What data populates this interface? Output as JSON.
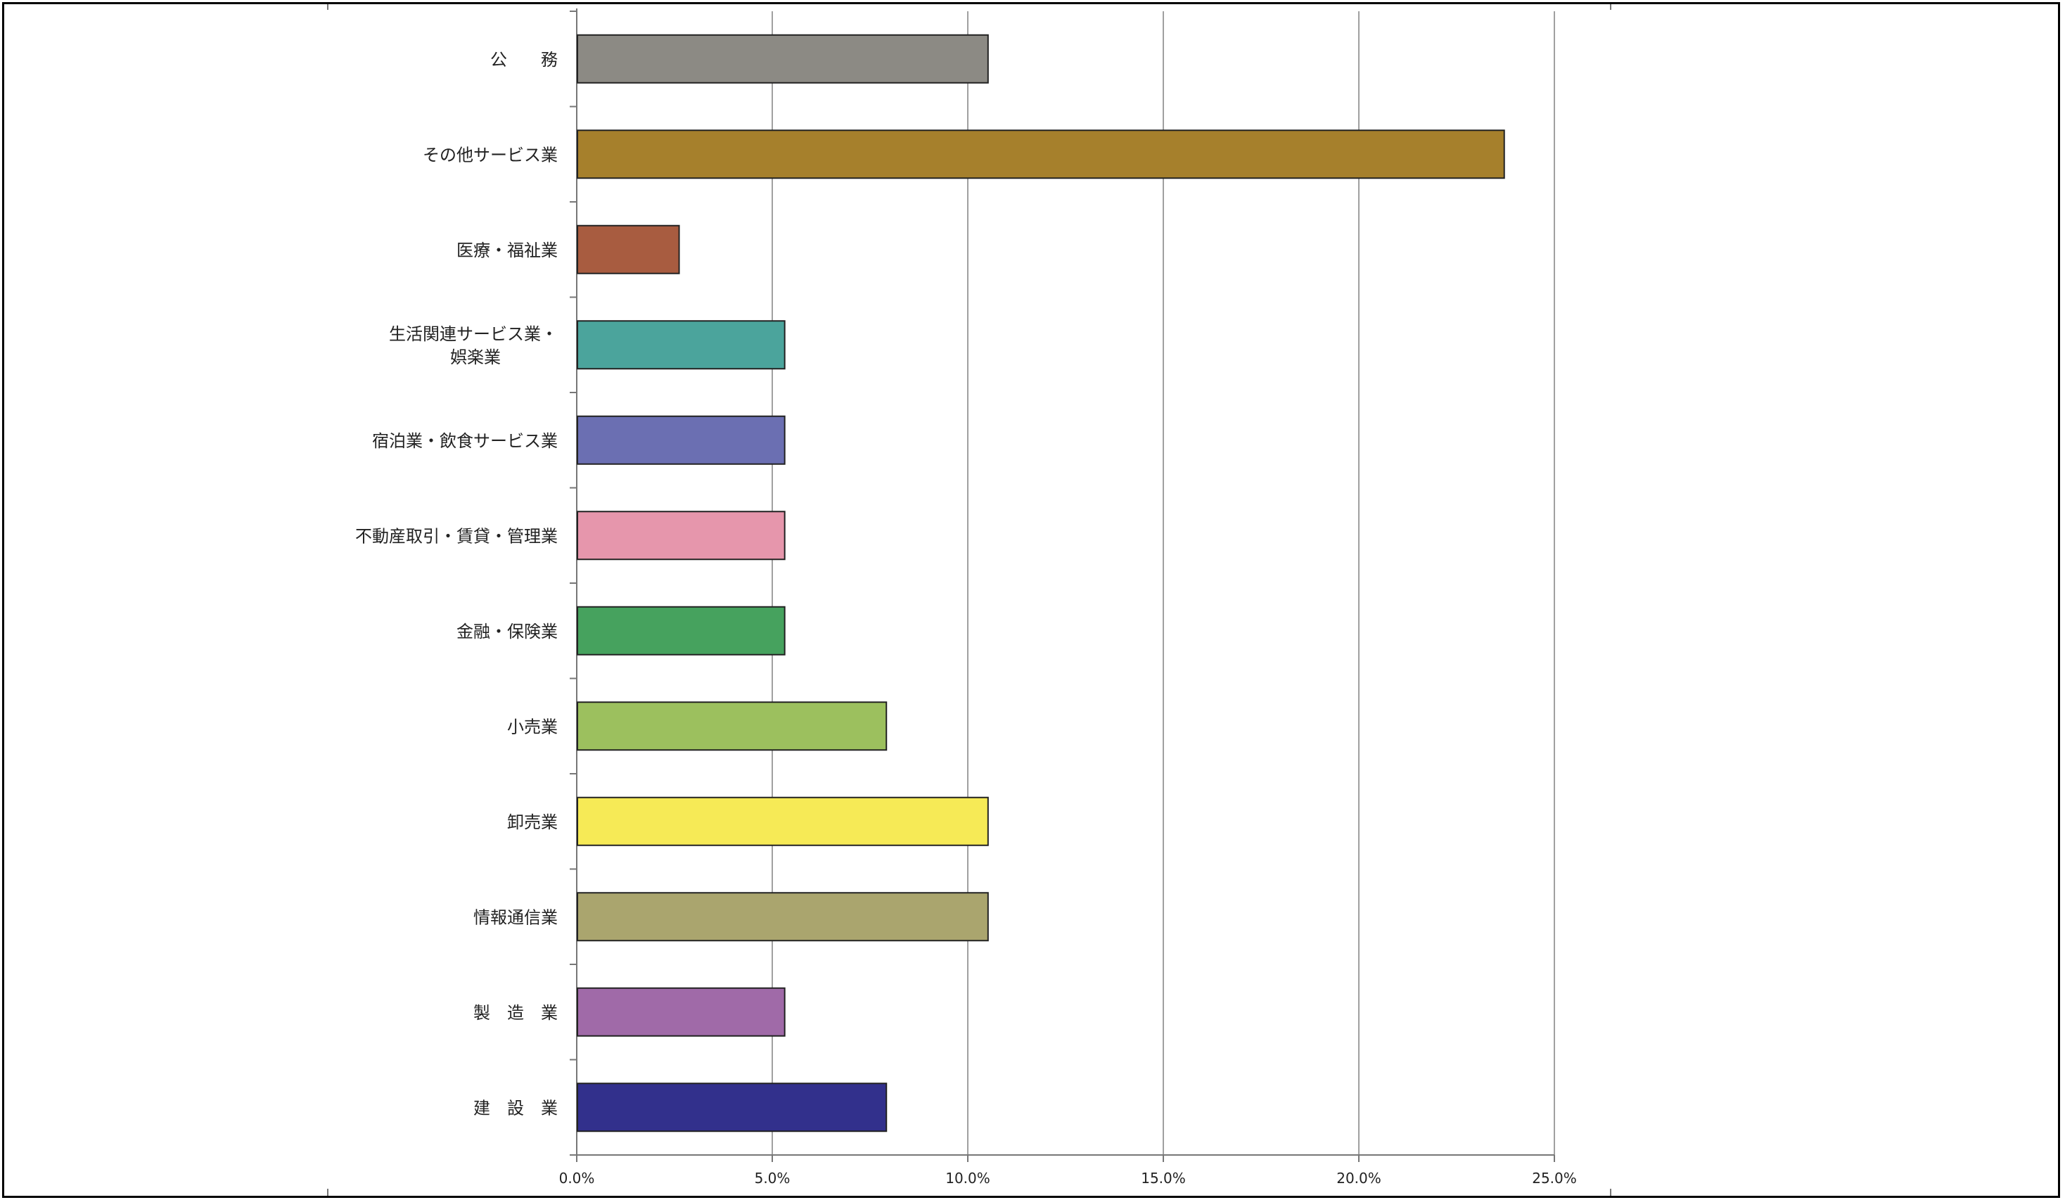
{
  "chart_data": {
    "type": "bar",
    "orientation": "horizontal",
    "categories": [
      [
        "公　　務"
      ],
      [
        "その他サービス業"
      ],
      [
        "医療・福祉業"
      ],
      [
        "生活関連サービス業・",
        "娯楽業"
      ],
      [
        "宿泊業・飲食サービス業"
      ],
      [
        "不動産取引・賃貸・管理業"
      ],
      [
        "金融・保険業"
      ],
      [
        "小売業"
      ],
      [
        "卸売業"
      ],
      [
        "情報通信業"
      ],
      [
        "製　造　業"
      ],
      [
        "建　設　業"
      ]
    ],
    "values": [
      10.5,
      23.7,
      2.6,
      5.3,
      5.3,
      5.3,
      5.3,
      7.9,
      10.5,
      10.5,
      5.3,
      7.9
    ],
    "colors": [
      "#8c8a84",
      "#a6802c",
      "#a85c40",
      "#4ba49c",
      "#6b6fb2",
      "#e696ac",
      "#46a25e",
      "#9cc05e",
      "#f6ea56",
      "#aaa56e",
      "#a06aa8",
      "#32308c"
    ],
    "xlim": [
      0,
      25
    ],
    "ticks": [
      "0.0%",
      "5.0%",
      "10.0%",
      "15.0%",
      "20.0%",
      "25.0%"
    ],
    "grid": true,
    "legend": "none",
    "title": "",
    "xlabel": "",
    "ylabel": ""
  }
}
